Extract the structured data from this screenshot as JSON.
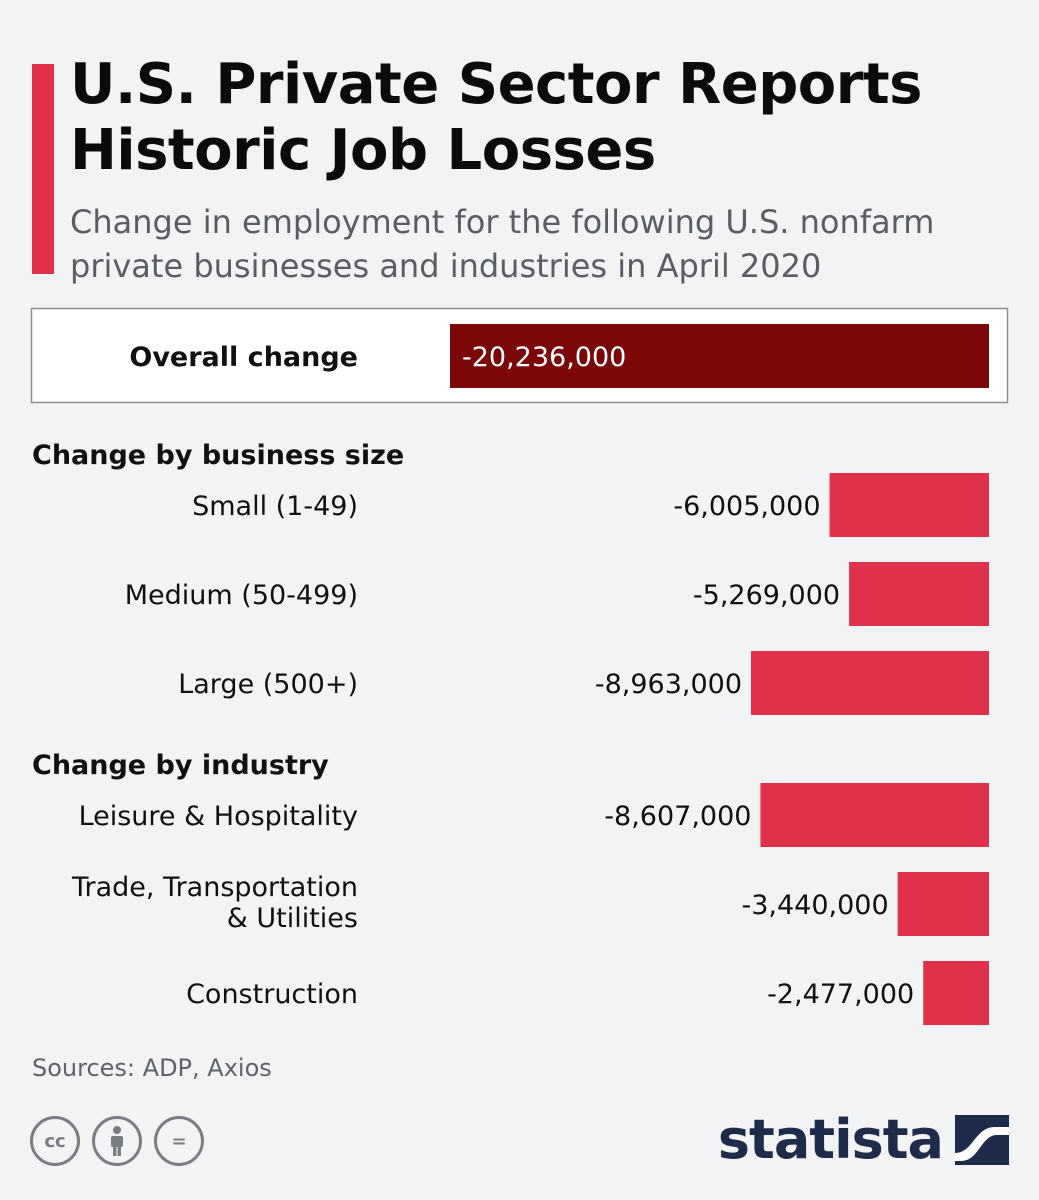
{
  "title": "U.S. Private Sector Reports Historic Job Losses",
  "subtitle": "Change in employment for the following U.S. nonfarm private businesses and industries in April 2020",
  "colors": {
    "accent": "#e0304a",
    "overall_bar": "#7c0709",
    "bar": "#e0304a",
    "brand": "#1e2b4a"
  },
  "chart_data": {
    "type": "bar",
    "orientation": "horizontal",
    "units": "jobs",
    "overall": {
      "label": "Overall change",
      "value": -20236000,
      "value_label": "-20,236,000"
    },
    "groups": [
      {
        "name": "Change by business size",
        "categories": [
          "Small (1-49)",
          "Medium (50-499)",
          "Large (500+)"
        ],
        "values": [
          -6005000,
          -5269000,
          -8963000
        ],
        "value_labels": [
          "-6,005,000",
          "-5,269,000",
          "-8,963,000"
        ]
      },
      {
        "name": "Change by industry",
        "categories": [
          "Leisure & Hospitality",
          "Trade, Transportation & Utilities",
          "Construction"
        ],
        "values": [
          -8607000,
          -3440000,
          -2477000
        ],
        "value_labels": [
          "-8,607,000",
          "-3,440,000",
          "-2,477,000"
        ]
      }
    ]
  },
  "footer": {
    "source": "Sources: ADP, Axios",
    "license_icons": [
      "cc",
      "by",
      "nd"
    ],
    "cc_label": "cc",
    "nd_label": "=",
    "brand": "statista",
    "brand_icon": "statista-logo-icon"
  }
}
